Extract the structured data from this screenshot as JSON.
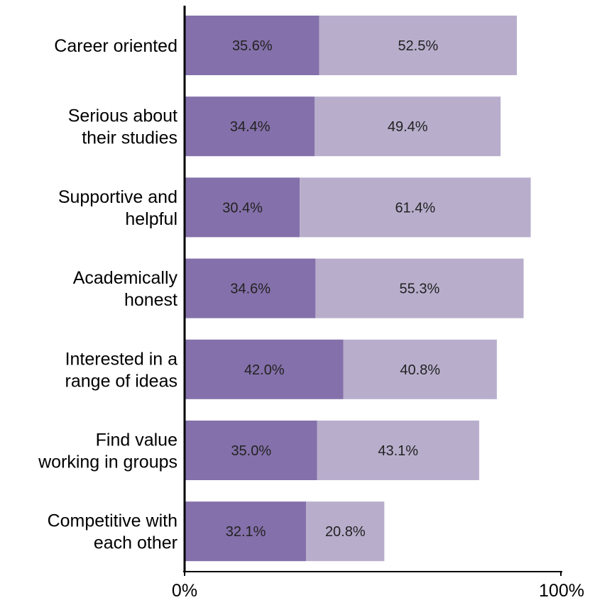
{
  "chart_data": {
    "type": "bar",
    "orientation": "horizontal",
    "stacked": true,
    "categories": [
      [
        "Career oriented"
      ],
      [
        "Serious about",
        "their studies"
      ],
      [
        "Supportive and",
        "helpful"
      ],
      [
        "Academically",
        "honest"
      ],
      [
        "Interested in a",
        "range of ideas"
      ],
      [
        "Find value",
        "working in groups"
      ],
      [
        "Competitive with",
        "each other"
      ]
    ],
    "series": [
      {
        "values": [
          35.6,
          34.4,
          30.4,
          34.6,
          42.0,
          35.0,
          32.1
        ],
        "labels": [
          "35.6%",
          "34.4%",
          "30.4%",
          "34.6%",
          "42.0%",
          "35.0%",
          "32.1%"
        ],
        "color": "#8470aa"
      },
      {
        "values": [
          52.5,
          49.4,
          61.4,
          55.3,
          40.8,
          43.1,
          20.8
        ],
        "labels": [
          "52.5%",
          "49.4%",
          "61.4%",
          "55.3%",
          "40.8%",
          "43.1%",
          "20.8%"
        ],
        "color": "#b8aecc"
      }
    ],
    "xlim": [
      0,
      100
    ],
    "x_ticks": [
      "0%",
      "100%"
    ],
    "title": "",
    "xlabel": "",
    "ylabel": "",
    "legend": "none",
    "grid": false
  }
}
